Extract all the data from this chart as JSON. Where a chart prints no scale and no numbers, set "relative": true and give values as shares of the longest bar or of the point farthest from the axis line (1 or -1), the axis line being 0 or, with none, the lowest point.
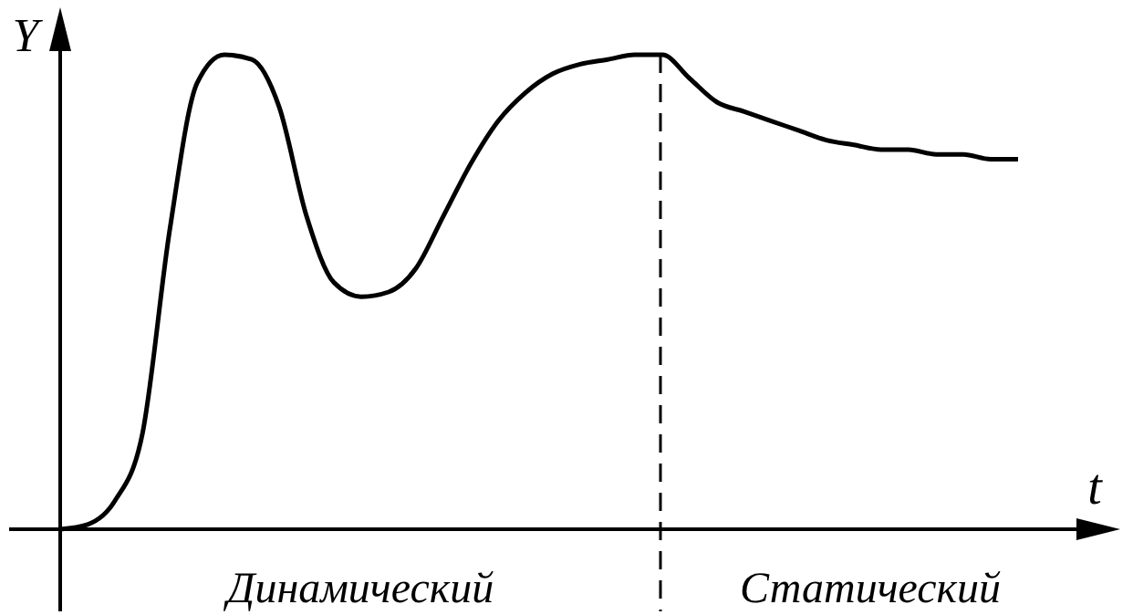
{
  "chart_data": {
    "type": "line",
    "relative": true,
    "xlabel": "t",
    "ylabel": "Y",
    "tick_labels": false,
    "marker": "none",
    "line_style": "solid",
    "categories": [
      null,
      null,
      null,
      null,
      null,
      null,
      null,
      null,
      null,
      null,
      null,
      null,
      null,
      null,
      null,
      null,
      null,
      null,
      null,
      null,
      null,
      null,
      null,
      null,
      null,
      null,
      null,
      null,
      null,
      null,
      null,
      null,
      null,
      null,
      null,
      null
    ],
    "series": [
      {
        "color": "#000000",
        "values": [
          0,
          0.01,
          0.06,
          0.2,
          0.63,
          0.94,
          1.0,
          0.99,
          0.89,
          0.66,
          0.52,
          0.49,
          0.5,
          0.55,
          0.66,
          0.77,
          0.86,
          0.92,
          0.96,
          0.98,
          0.99,
          1.0,
          1.0,
          0.95,
          0.9,
          0.88,
          0.86,
          0.84,
          0.82,
          0.81,
          0.8,
          0.8,
          0.79,
          0.79,
          0.78,
          0.78
        ]
      }
    ],
    "annotations": [
      "Динамический",
      "Статический"
    ]
  }
}
